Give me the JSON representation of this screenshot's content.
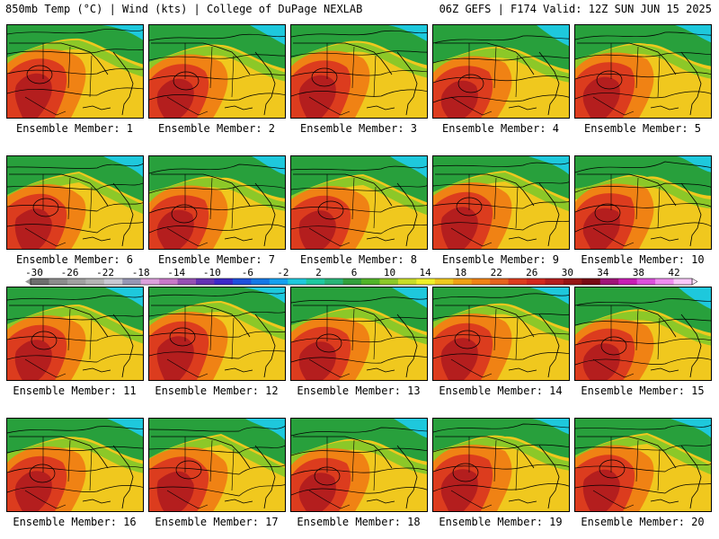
{
  "header": {
    "left": "850mb Temp (°C) | Wind (kts) | College of DuPage NEXLAB",
    "right": "06Z GEFS | F174 Valid: 12Z SUN JUN 15 2025"
  },
  "members": [
    {
      "label": "Ensemble Member: 1",
      "id": 1
    },
    {
      "label": "Ensemble Member: 2",
      "id": 2
    },
    {
      "label": "Ensemble Member: 3",
      "id": 3
    },
    {
      "label": "Ensemble Member: 4",
      "id": 4
    },
    {
      "label": "Ensemble Member: 5",
      "id": 5
    },
    {
      "label": "Ensemble Member: 6",
      "id": 6
    },
    {
      "label": "Ensemble Member: 7",
      "id": 7
    },
    {
      "label": "Ensemble Member: 8",
      "id": 8
    },
    {
      "label": "Ensemble Member: 9",
      "id": 9
    },
    {
      "label": "Ensemble Member: 10",
      "id": 10
    },
    {
      "label": "Ensemble Member: 11",
      "id": 11
    },
    {
      "label": "Ensemble Member: 12",
      "id": 12
    },
    {
      "label": "Ensemble Member: 13",
      "id": 13
    },
    {
      "label": "Ensemble Member: 14",
      "id": 14
    },
    {
      "label": "Ensemble Member: 15",
      "id": 15
    },
    {
      "label": "Ensemble Member: 16",
      "id": 16
    },
    {
      "label": "Ensemble Member: 17",
      "id": 17
    },
    {
      "label": "Ensemble Member: 18",
      "id": 18
    },
    {
      "label": "Ensemble Member: 19",
      "id": 19
    },
    {
      "label": "Ensemble Member: 20",
      "id": 20
    }
  ],
  "colorbar": {
    "tick_labels": [
      "-30",
      "-26",
      "-22",
      "-18",
      "-14",
      "-10",
      "-6",
      "-2",
      "2",
      "6",
      "10",
      "14",
      "18",
      "22",
      "26",
      "30",
      "34",
      "38",
      "42"
    ],
    "colors": [
      "#6e6e6e",
      "#8c8c8c",
      "#a0a0a0",
      "#b4b4b4",
      "#c8c8d2",
      "#9696b4",
      "#dca0dc",
      "#c878c8",
      "#9650b4",
      "#6432b4",
      "#3c28c8",
      "#1e50dc",
      "#1478e6",
      "#14a0f0",
      "#1ec8dc",
      "#1ec8a0",
      "#28b478",
      "#32a03c",
      "#50b428",
      "#8cc828",
      "#c8dc28",
      "#f0f028",
      "#f0c81e",
      "#f0a014",
      "#f08214",
      "#e6641e",
      "#dc3c1e",
      "#d2281e",
      "#b41e1e",
      "#961414",
      "#780a14",
      "#a01478",
      "#c81eb4",
      "#dc50dc",
      "#f08cf0",
      "#fac8fa"
    ]
  },
  "palette": {
    "cold": "#1ec8dc",
    "cool": "#28a03c",
    "mild": "#8cc828",
    "warm": "#f0c81e",
    "hot": "#f08214",
    "veryhot": "#dc3c1e",
    "extreme": "#b41e1e"
  }
}
